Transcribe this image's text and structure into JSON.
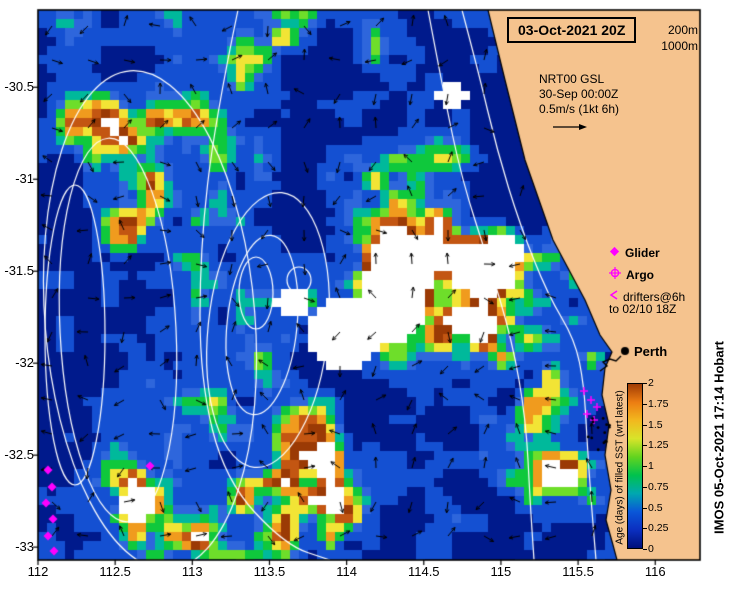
{
  "title_box": {
    "label": "03-Oct-2021 20Z"
  },
  "depth_legend": {
    "line1": "200m",
    "line2": "1000m"
  },
  "velocity_key": {
    "line1": "NRT00 GSL",
    "line2": "30-Sep 00:00Z",
    "line3": "0.5m/s (1kt 6h)"
  },
  "obs_legend": {
    "glider": "Glider",
    "argo": "Argo",
    "drifters_line1": "drifters@6h",
    "drifters_line2": "to 02/10 18Z",
    "marker_color": "#ff00ff"
  },
  "annotations": {
    "perth": "Perth",
    "watermark": "IMOS 05-Oct-2021 17:14 Hobart"
  },
  "axes": {
    "x": {
      "ticks": [
        "112",
        "112.5",
        "113",
        "113.5",
        "114",
        "114.5",
        "115",
        "115.5",
        "116"
      ],
      "lon_min": 112,
      "lon_max": 116.29
    },
    "y": {
      "ticks": [
        "-30.5",
        "-31",
        "-31.5",
        "-32",
        "-32.5",
        "-33"
      ],
      "lat_min": -30.08,
      "lat_max": -33.07
    }
  },
  "colorbar": {
    "label": "Age (days) of filled SST (wrt latest)",
    "tick_labels": [
      "2",
      "1.75",
      "1.5",
      "1.25",
      "1",
      "0.75",
      "0.5",
      "0.25",
      "0"
    ],
    "min": 0,
    "max": 2,
    "stops_bottom_to_top": [
      "#00107a",
      "#0b2fc0",
      "#0a57d8",
      "#00a8b0",
      "#00c24d",
      "#63d41f",
      "#d8e42a",
      "#f2b81e",
      "#ec7d12",
      "#a03c05"
    ]
  },
  "map": {
    "land_color": "#f5c38e",
    "coast_color": "#000000",
    "contour_color": "#ffffff",
    "arrow_color": "#000000",
    "sea_palette": [
      "#001a8c",
      "#1450d2",
      "#2e66dc",
      "#00b99b",
      "#0fc83c",
      "#6ede2a",
      "#f2e435",
      "#f09b1e",
      "#c35612",
      "#9b3a05",
      "#ffffff"
    ]
  }
}
